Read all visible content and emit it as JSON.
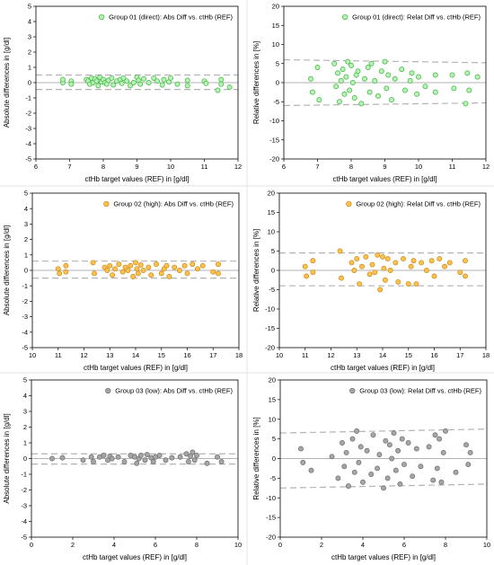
{
  "chart_data": [
    {
      "type": "scatter",
      "legend": "Group 01 (direct): Abs Diff vs. ctHb (REF)",
      "legend_position": "top-right",
      "xlabel": "ctHb target values (REF) in [g/dl]",
      "ylabel": "Absolute differences in [g/dl]",
      "xlim": [
        6,
        12
      ],
      "ylim": [
        -5,
        5
      ],
      "xticks": [
        "6",
        "7",
        "8",
        "9",
        "10",
        "11",
        "12"
      ],
      "yticks": [
        "-5",
        "-4",
        "-3",
        "-2",
        "-1",
        "0",
        "1",
        "2",
        "3",
        "4",
        "5"
      ],
      "marker_fill": "#b8f0b8",
      "marker_edge": "#3cb83c",
      "ref_lines": {
        "upper": 0.5,
        "mean": 0.0,
        "lower": -0.45
      },
      "x": [
        6.8,
        6.8,
        7.05,
        7.05,
        7.5,
        7.55,
        7.6,
        7.65,
        7.7,
        7.75,
        7.8,
        7.85,
        7.9,
        7.95,
        8.0,
        8.05,
        8.1,
        8.15,
        8.25,
        8.3,
        8.4,
        8.5,
        8.55,
        8.6,
        8.7,
        8.8,
        8.9,
        9.0,
        9.05,
        9.1,
        9.2,
        9.35,
        9.5,
        9.6,
        9.75,
        9.8,
        9.95,
        10.0,
        10.2,
        10.5,
        10.5,
        11.0,
        11.05,
        11.4,
        11.5,
        11.5,
        11.75
      ],
      "y": [
        0.0,
        0.2,
        0.1,
        -0.1,
        0.2,
        0.1,
        -0.1,
        0.3,
        0.0,
        0.25,
        0.1,
        -0.2,
        0.35,
        0.05,
        0.2,
        0.0,
        -0.1,
        0.15,
        0.3,
        -0.15,
        0.1,
        0.2,
        -0.05,
        0.3,
        0.1,
        -0.2,
        0.0,
        0.35,
        0.15,
        -0.1,
        0.25,
        0.0,
        0.3,
        0.1,
        -0.15,
        0.2,
        0.05,
        0.3,
        -0.1,
        0.15,
        -0.2,
        0.1,
        -0.05,
        -0.5,
        0.2,
        -0.1,
        -0.3
      ]
    },
    {
      "type": "scatter",
      "legend": "Group 01 (direct): Relat Diff vs. ctHb (REF)",
      "legend_position": "top-right",
      "xlabel": "ctHb target values (REF) in [g/dl]",
      "ylabel": "Relative differences in [%]",
      "xlim": [
        6,
        12
      ],
      "ylim": [
        -20,
        20
      ],
      "xticks": [
        "6",
        "7",
        "8",
        "9",
        "10",
        "11",
        "12"
      ],
      "yticks": [
        "-20",
        "-15",
        "-10",
        "-5",
        "0",
        "5",
        "10",
        "15",
        "20"
      ],
      "marker_fill": "#b8f0b8",
      "marker_edge": "#3cb83c",
      "ref_lines": {
        "upper_start": 6.0,
        "upper_end": 5.2,
        "mean": 0.0,
        "lower_start": -6.0,
        "lower_end": -5.3
      },
      "x": [
        6.8,
        6.85,
        7.0,
        7.05,
        7.5,
        7.55,
        7.6,
        7.65,
        7.7,
        7.75,
        7.8,
        7.85,
        7.9,
        7.95,
        8.0,
        8.05,
        8.1,
        8.15,
        8.2,
        8.3,
        8.4,
        8.5,
        8.55,
        8.6,
        8.7,
        8.8,
        8.9,
        9.0,
        9.05,
        9.1,
        9.2,
        9.3,
        9.5,
        9.6,
        9.75,
        9.8,
        9.95,
        10.0,
        10.2,
        10.5,
        10.5,
        11.0,
        11.05,
        11.4,
        11.45,
        11.5,
        11.75
      ],
      "y": [
        1.0,
        -2.5,
        4.0,
        -4.5,
        5.0,
        -1.0,
        2.5,
        -5.0,
        0.5,
        3.5,
        -3.0,
        1.5,
        5.5,
        -2.0,
        4.5,
        0.0,
        -4.0,
        2.0,
        3.0,
        -5.5,
        1.0,
        4.0,
        -2.5,
        5.0,
        0.5,
        -3.5,
        3.0,
        5.5,
        -1.5,
        2.0,
        -4.5,
        1.0,
        3.5,
        -2.0,
        0.5,
        2.5,
        -3.0,
        1.5,
        -1.0,
        2.0,
        -2.5,
        2.0,
        -1.5,
        -5.5,
        2.5,
        -2.0,
        1.5
      ]
    },
    {
      "type": "scatter",
      "legend": "Group 02 (high): Abs Diff vs. ctHb (REF)",
      "legend_position": "top-right",
      "xlabel": "ctHb target values (REF) in [g/dl]",
      "ylabel": "Absolute differences in [g/dl]",
      "xlim": [
        10,
        18
      ],
      "ylim": [
        -5,
        5
      ],
      "xticks": [
        "10",
        "11",
        "12",
        "13",
        "14",
        "15",
        "16",
        "17",
        "18"
      ],
      "yticks": [
        "-5",
        "-4",
        "-3",
        "-2",
        "-1",
        "0",
        "1",
        "2",
        "3",
        "4",
        "5"
      ],
      "marker_fill": "#ffc14d",
      "marker_edge": "#c98a1a",
      "ref_lines": {
        "upper": 0.6,
        "mean": 0.0,
        "lower": -0.5
      },
      "x": [
        11.0,
        11.05,
        11.3,
        11.3,
        12.35,
        12.4,
        12.8,
        12.9,
        13.0,
        13.1,
        13.2,
        13.35,
        13.5,
        13.6,
        13.7,
        13.8,
        13.9,
        14.0,
        14.05,
        14.1,
        14.2,
        14.3,
        14.5,
        14.6,
        14.8,
        15.0,
        15.1,
        15.2,
        15.3,
        15.5,
        15.7,
        15.9,
        16.0,
        16.2,
        16.4,
        16.6,
        17.0,
        17.2,
        17.2
      ],
      "y": [
        0.1,
        -0.2,
        0.3,
        -0.1,
        0.5,
        -0.2,
        0.2,
        0.0,
        0.3,
        -0.3,
        0.1,
        0.4,
        -0.1,
        0.2,
        0.0,
        0.3,
        -0.4,
        0.5,
        0.1,
        -0.2,
        0.35,
        0.0,
        0.2,
        -0.3,
        0.4,
        -0.2,
        0.1,
        0.3,
        -0.4,
        0.2,
        0.0,
        0.3,
        -0.2,
        0.4,
        0.1,
        0.3,
        -0.1,
        0.4,
        -0.2
      ]
    },
    {
      "type": "scatter",
      "legend": "Group 02 (high): Relat Diff vs. ctHb (REF)",
      "legend_position": "top-right",
      "xlabel": "ctHb target values (REF) in [g/dl]",
      "ylabel": "Relative differences in [%]",
      "xlim": [
        10,
        18
      ],
      "ylim": [
        -20,
        20
      ],
      "xticks": [
        "10",
        "11",
        "12",
        "13",
        "14",
        "15",
        "16",
        "17",
        "18"
      ],
      "yticks": [
        "-20",
        "-15",
        "-10",
        "-5",
        "0",
        "5",
        "10",
        "15",
        "20"
      ],
      "marker_fill": "#ffc14d",
      "marker_edge": "#c98a1a",
      "ref_lines": {
        "upper": 4.5,
        "mean": 0.0,
        "lower": -4.0
      },
      "x": [
        11.0,
        11.05,
        11.3,
        11.3,
        12.35,
        12.4,
        12.8,
        12.9,
        13.0,
        13.1,
        13.2,
        13.35,
        13.5,
        13.6,
        13.7,
        13.8,
        13.9,
        14.0,
        14.05,
        14.1,
        14.2,
        14.3,
        14.5,
        14.6,
        14.8,
        15.0,
        15.1,
        15.2,
        15.3,
        15.5,
        15.7,
        15.9,
        16.0,
        16.2,
        16.4,
        16.6,
        17.0,
        17.2,
        17.2
      ],
      "y": [
        1.0,
        -1.5,
        2.5,
        -0.5,
        5.0,
        -2.0,
        2.0,
        0.0,
        3.0,
        -3.5,
        1.0,
        3.5,
        -1.0,
        1.5,
        -0.5,
        4.0,
        -5.0,
        3.5,
        0.5,
        -2.5,
        3.0,
        0.0,
        2.0,
        -3.0,
        3.0,
        -3.5,
        1.0,
        2.5,
        -3.5,
        2.0,
        0.0,
        2.5,
        -1.5,
        3.0,
        1.0,
        2.0,
        -0.5,
        2.5,
        -1.5
      ]
    },
    {
      "type": "scatter",
      "legend": "Group 03 (low): Abs Diff vs. ctHb (REF)",
      "legend_position": "top-right",
      "xlabel": "ctHb target values (REF) in [g/dl]",
      "ylabel": "Absolute differences in [g/dl]",
      "xlim": [
        0,
        10
      ],
      "ylim": [
        -5,
        5
      ],
      "xticks": [
        "0",
        "2",
        "4",
        "6",
        "8",
        "10"
      ],
      "yticks": [
        "-5",
        "-4",
        "-3",
        "-2",
        "-1",
        "0",
        "1",
        "2",
        "3",
        "4",
        "5"
      ],
      "marker_fill": "#a6a6a6",
      "marker_edge": "#6e6e6e",
      "ref_lines": {
        "upper": 0.3,
        "mean": 0.0,
        "lower": -0.35
      },
      "x": [
        1.0,
        1.5,
        2.5,
        2.9,
        3.0,
        3.3,
        3.5,
        3.7,
        3.8,
        3.9,
        4.2,
        4.5,
        4.8,
        5.0,
        5.1,
        5.2,
        5.3,
        5.5,
        5.6,
        5.8,
        5.9,
        6.0,
        6.2,
        6.5,
        6.8,
        7.2,
        7.5,
        7.6,
        7.7,
        7.8,
        7.9,
        8.0,
        8.5,
        9.0,
        9.2
      ],
      "y": [
        0.0,
        0.05,
        -0.1,
        0.1,
        -0.2,
        0.1,
        0.2,
        -0.1,
        0.15,
        0.0,
        0.1,
        -0.2,
        0.2,
        0.1,
        -0.3,
        0.0,
        0.2,
        -0.1,
        0.25,
        0.05,
        -0.2,
        0.1,
        0.2,
        -0.1,
        0.05,
        0.1,
        0.3,
        -0.2,
        0.15,
        0.4,
        -0.1,
        0.2,
        -0.3,
        0.1,
        -0.2
      ]
    },
    {
      "type": "scatter",
      "legend": "Group 03 (low): Relat Diff vs. ctHb (REF)",
      "legend_position": "top-right",
      "xlabel": "ctHb target values (REF) in [g/dl]",
      "ylabel": "Relative differences in [%]",
      "xlim": [
        0,
        10
      ],
      "ylim": [
        -20,
        20
      ],
      "xticks": [
        "0",
        "2",
        "4",
        "6",
        "8",
        "10"
      ],
      "yticks": [
        "-20",
        "-15",
        "-10",
        "-5",
        "0",
        "5",
        "10",
        "15",
        "20"
      ],
      "marker_fill": "#a6a6a6",
      "marker_edge": "#6e6e6e",
      "ref_lines": {
        "upper_start": 6.5,
        "upper_end": 7.5,
        "mean": 0.0,
        "lower_start": -7.5,
        "lower_end": -6.5
      },
      "x": [
        1.0,
        1.1,
        1.5,
        2.5,
        2.8,
        3.0,
        3.1,
        3.2,
        3.3,
        3.5,
        3.6,
        3.7,
        3.8,
        3.9,
        4.0,
        4.2,
        4.4,
        4.5,
        4.7,
        4.8,
        5.0,
        5.1,
        5.2,
        5.3,
        5.4,
        5.5,
        5.6,
        5.7,
        5.8,
        5.9,
        6.0,
        6.2,
        6.4,
        6.6,
        6.8,
        7.2,
        7.4,
        7.5,
        7.6,
        7.7,
        7.8,
        7.9,
        8.0,
        8.5,
        9.0,
        9.1,
        9.2
      ],
      "y": [
        2.5,
        -1.0,
        -3.0,
        0.5,
        -5.0,
        4.0,
        -2.0,
        1.5,
        -7.0,
        5.0,
        -3.5,
        7.0,
        -1.0,
        3.0,
        -6.0,
        2.0,
        -4.0,
        6.0,
        -2.5,
        1.0,
        -7.5,
        4.5,
        -5.0,
        3.5,
        0.0,
        6.5,
        -3.0,
        2.0,
        -6.5,
        5.0,
        -1.5,
        4.0,
        -4.5,
        2.5,
        -2.0,
        3.0,
        -5.5,
        6.0,
        -2.5,
        5.0,
        -6.0,
        1.5,
        7.0,
        -3.5,
        3.5,
        -1.5,
        1.5
      ]
    }
  ]
}
